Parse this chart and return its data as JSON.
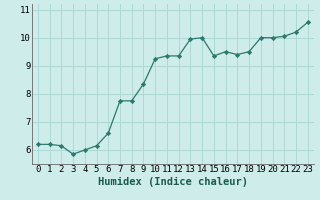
{
  "x": [
    0,
    1,
    2,
    3,
    4,
    5,
    6,
    7,
    8,
    9,
    10,
    11,
    12,
    13,
    14,
    15,
    16,
    17,
    18,
    19,
    20,
    21,
    22,
    23
  ],
  "y": [
    6.2,
    6.2,
    6.15,
    5.85,
    6.0,
    6.15,
    6.6,
    7.75,
    7.75,
    8.35,
    9.25,
    9.35,
    9.35,
    9.95,
    10.0,
    9.35,
    9.5,
    9.4,
    9.5,
    10.0,
    10.0,
    10.05,
    10.2,
    10.55
  ],
  "line_color": "#2a7a6e",
  "marker": "D",
  "marker_size": 2.2,
  "bg_color": "#ceecea",
  "grid_color": "#aed8d4",
  "xlabel": "Humidex (Indice chaleur)",
  "xlabel_fontsize": 7.5,
  "tick_fontsize": 6.5,
  "ylim": [
    5.5,
    11.2
  ],
  "xlim": [
    -0.5,
    23.5
  ],
  "yticks": [
    6,
    7,
    8,
    9,
    10,
    11
  ],
  "xticks": [
    0,
    1,
    2,
    3,
    4,
    5,
    6,
    7,
    8,
    9,
    10,
    11,
    12,
    13,
    14,
    15,
    16,
    17,
    18,
    19,
    20,
    21,
    22,
    23
  ]
}
